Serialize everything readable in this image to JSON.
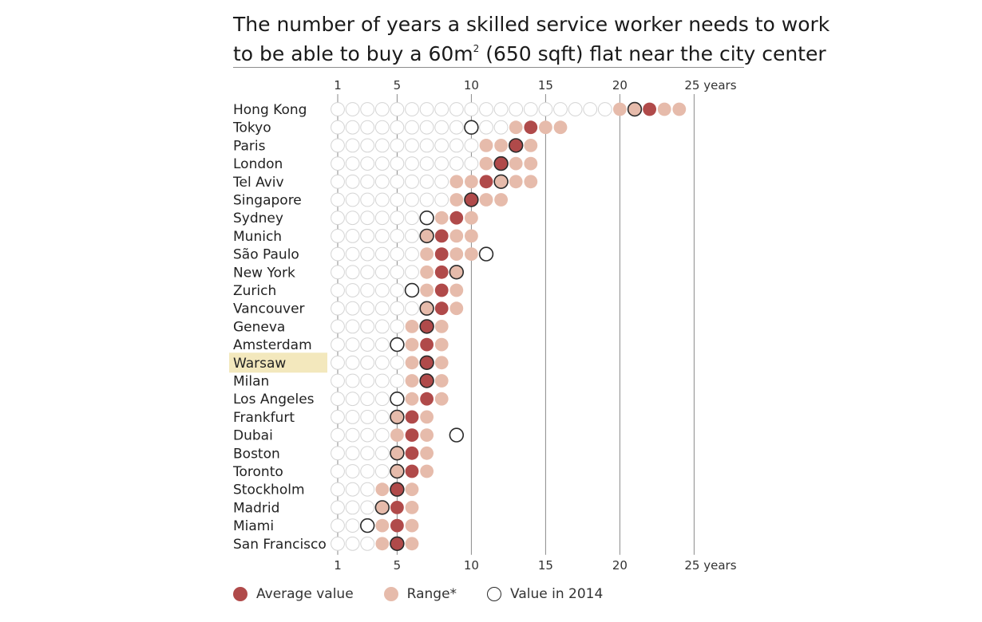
{
  "chart_title": {
    "line1": "The number of years a skilled service worker needs to work",
    "line2_pre": "to be able to buy a 60m",
    "line2_sup": "2",
    "line2_post": " (650 sqft) flat near the city center"
  },
  "axis": {
    "ticks": [
      1,
      5,
      10,
      15,
      20,
      25
    ],
    "tick_labels": [
      "1",
      "5",
      "10",
      "15",
      "20",
      "25 years"
    ],
    "max_dots": 24
  },
  "highlight_city": "Warsaw",
  "legend": {
    "average": "Average value",
    "range": "Range*",
    "value_2014": "Value in 2014"
  },
  "colors": {
    "average": "#b04a4a",
    "range": "#e6bbab",
    "empty_stroke": "#d4d4d4",
    "value_2014_stroke": "#2a2a2a",
    "gridline": "#8a8a8a",
    "highlight": "#f3e8bd"
  },
  "chart_data": {
    "type": "scatter",
    "xlabel": "years",
    "xlim": [
      1,
      25
    ],
    "rows": [
      {
        "city": "Hong Kong",
        "range": [
          20,
          24
        ],
        "average": 22,
        "value_2014": 21
      },
      {
        "city": "Tokyo",
        "range": [
          13,
          16
        ],
        "average": 14,
        "value_2014": 10
      },
      {
        "city": "Paris",
        "range": [
          11,
          14
        ],
        "average": 13,
        "value_2014": 13
      },
      {
        "city": "London",
        "range": [
          11,
          14
        ],
        "average": 12,
        "value_2014": 12
      },
      {
        "city": "Tel Aviv",
        "range": [
          9,
          14
        ],
        "average": 11,
        "value_2014": 12
      },
      {
        "city": "Singapore",
        "range": [
          9,
          12
        ],
        "average": 10,
        "value_2014": 10
      },
      {
        "city": "Sydney",
        "range": [
          8,
          10
        ],
        "average": 9,
        "value_2014": 7
      },
      {
        "city": "Munich",
        "range": [
          7,
          10
        ],
        "average": 8,
        "value_2014": 7
      },
      {
        "city": "São Paulo",
        "range": [
          7,
          10
        ],
        "average": 8,
        "value_2014": 11
      },
      {
        "city": "New York",
        "range": [
          7,
          9
        ],
        "average": 8,
        "value_2014": 9
      },
      {
        "city": "Zurich",
        "range": [
          7,
          9
        ],
        "average": 8,
        "value_2014": 6
      },
      {
        "city": "Vancouver",
        "range": [
          7,
          9
        ],
        "average": 8,
        "value_2014": 7
      },
      {
        "city": "Geneva",
        "range": [
          6,
          8
        ],
        "average": 7,
        "value_2014": 7
      },
      {
        "city": "Amsterdam",
        "range": [
          6,
          8
        ],
        "average": 7,
        "value_2014": 5
      },
      {
        "city": "Warsaw",
        "range": [
          6,
          8
        ],
        "average": 7,
        "value_2014": 7
      },
      {
        "city": "Milan",
        "range": [
          6,
          8
        ],
        "average": 7,
        "value_2014": 7
      },
      {
        "city": "Los Angeles",
        "range": [
          6,
          8
        ],
        "average": 7,
        "value_2014": 5
      },
      {
        "city": "Frankfurt",
        "range": [
          5,
          7
        ],
        "average": 6,
        "value_2014": 5
      },
      {
        "city": "Dubai",
        "range": [
          5,
          7
        ],
        "average": 6,
        "value_2014": 9
      },
      {
        "city": "Boston",
        "range": [
          5,
          7
        ],
        "average": 6,
        "value_2014": 5
      },
      {
        "city": "Toronto",
        "range": [
          5,
          7
        ],
        "average": 6,
        "value_2014": 5
      },
      {
        "city": "Stockholm",
        "range": [
          4,
          6
        ],
        "average": 5,
        "value_2014": 5
      },
      {
        "city": "Madrid",
        "range": [
          4,
          6
        ],
        "average": 5,
        "value_2014": 4
      },
      {
        "city": "Miami",
        "range": [
          4,
          6
        ],
        "average": 5,
        "value_2014": 3
      },
      {
        "city": "San Francisco",
        "range": [
          4,
          6
        ],
        "average": 5,
        "value_2014": 5
      }
    ]
  }
}
